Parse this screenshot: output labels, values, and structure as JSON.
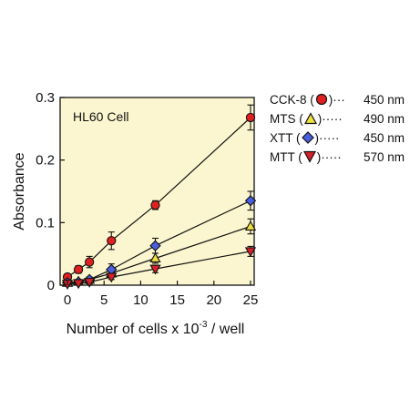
{
  "chart_data": {
    "type": "scatter",
    "annotation": "HL60 Cell",
    "xlabel": "Number of cells x 10",
    "xlabel_sup": "-3",
    "xlabel_suffix": " / well",
    "ylabel": "Absorbance",
    "xlim": [
      -1,
      25.5
    ],
    "ylim": [
      0,
      0.3
    ],
    "x_ticks": [
      0,
      5,
      10,
      15,
      20,
      25
    ],
    "y_ticks": [
      0,
      0.1,
      0.2,
      0.3
    ],
    "y_tick_labels": [
      "0",
      "0.1",
      "0.2",
      "0.3"
    ],
    "grid": false,
    "background": "#fbf6cf",
    "legend_position": "right",
    "series": [
      {
        "name": "CCK-8",
        "marker": "circle",
        "color": "#e02020",
        "wavelength": "450 nm",
        "x": [
          0,
          1.5,
          3,
          6,
          12,
          25
        ],
        "y": [
          0.013,
          0.025,
          0.037,
          0.071,
          0.128,
          0.268
        ],
        "err": [
          0.004,
          0.006,
          0.009,
          0.014,
          0.007,
          0.02
        ]
      },
      {
        "name": "MTS",
        "marker": "triangle-up",
        "color": "#f0e040",
        "wavelength": "490 nm",
        "x": [
          0,
          1.5,
          3,
          6,
          12,
          25
        ],
        "y": [
          0.004,
          0.006,
          0.009,
          0.019,
          0.043,
          0.094
        ],
        "err": [
          0.003,
          0.003,
          0.004,
          0.006,
          0.008,
          0.012
        ]
      },
      {
        "name": "XTT",
        "marker": "diamond",
        "color": "#4a5ee0",
        "wavelength": "450 nm",
        "x": [
          0,
          1.5,
          3,
          6,
          12,
          25
        ],
        "y": [
          0.004,
          0.005,
          0.009,
          0.025,
          0.063,
          0.135
        ],
        "err": [
          0.003,
          0.003,
          0.004,
          0.009,
          0.012,
          0.015
        ]
      },
      {
        "name": "MTT",
        "marker": "triangle-down",
        "color": "#d8202a",
        "wavelength": "570 nm",
        "x": [
          0,
          1.5,
          3,
          6,
          12,
          25
        ],
        "y": [
          0.002,
          0.003,
          0.005,
          0.013,
          0.026,
          0.054
        ],
        "err": [
          0.002,
          0.002,
          0.003,
          0.004,
          0.006,
          0.008
        ]
      }
    ]
  }
}
